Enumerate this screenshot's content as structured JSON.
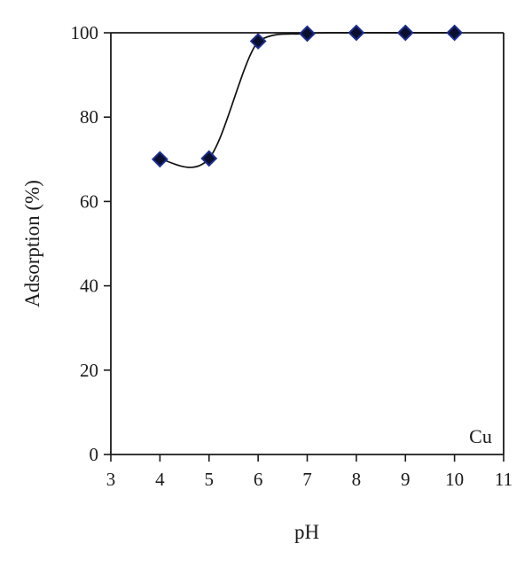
{
  "chart_data": {
    "type": "scatter",
    "title": "",
    "xlabel": "pH",
    "ylabel": "Adsorption (%)",
    "xlim": [
      3,
      11
    ],
    "ylim": [
      0,
      100
    ],
    "x_ticks": [
      3,
      4,
      5,
      6,
      7,
      8,
      9,
      10,
      11
    ],
    "y_ticks": [
      0,
      20,
      40,
      60,
      80,
      100
    ],
    "grid": false,
    "legend": "none",
    "annotation": "Cu",
    "series": [
      {
        "x": [
          4,
          5,
          6,
          7,
          8,
          9,
          10
        ],
        "y": [
          70,
          70.2,
          98,
          99.8,
          100,
          100,
          100
        ],
        "marker": "diamond",
        "marker_color": "#0a0f2e",
        "marker_edge_color": "#1c2d8f",
        "line": "smooth",
        "line_color": "#111111"
      }
    ]
  }
}
